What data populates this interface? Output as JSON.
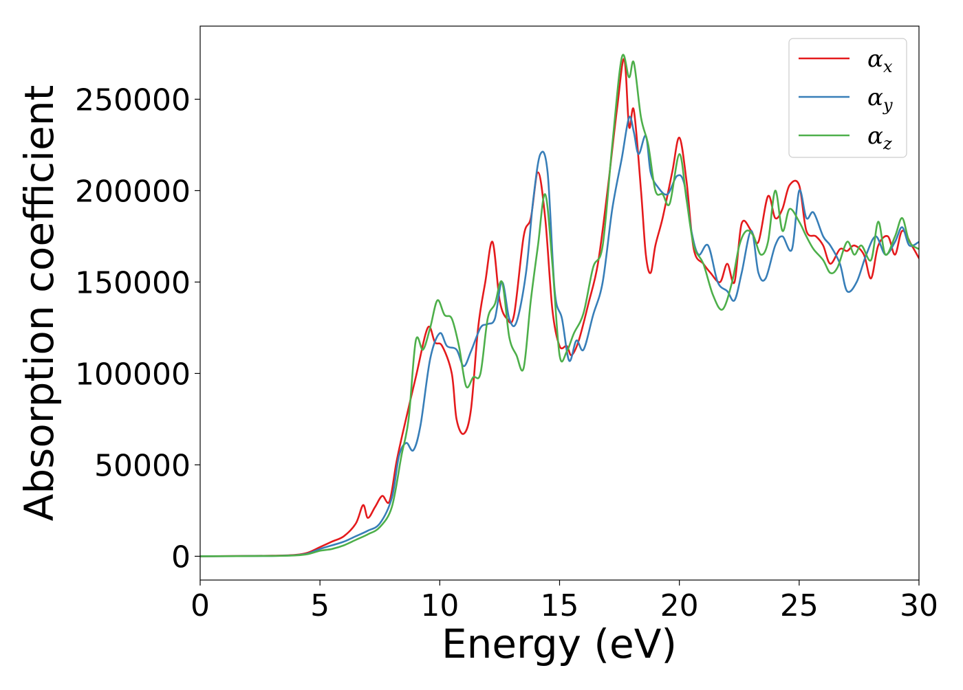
{
  "chart_data": {
    "type": "line",
    "xlabel": "Energy (eV)",
    "ylabel": "Absorption coefficient",
    "xlim": [
      0,
      30
    ],
    "ylim": [
      -13000,
      290000
    ],
    "xticks": [
      0,
      5,
      10,
      15,
      20,
      25,
      30
    ],
    "xtick_labels": [
      "0",
      "5",
      "10",
      "15",
      "20",
      "25",
      "30"
    ],
    "yticks": [
      0,
      50000,
      100000,
      150000,
      200000,
      250000
    ],
    "ytick_labels": [
      "0",
      "50000",
      "100000",
      "150000",
      "200000",
      "250000"
    ],
    "grid": false,
    "legend_position": "top-right",
    "series": [
      {
        "name": "αx",
        "name_base": "α",
        "name_sub": "x",
        "color": "#e41a1c",
        "x": [
          0,
          3,
          4,
          4.5,
          5,
          5.5,
          6,
          6.5,
          6.8,
          7.0,
          7.3,
          7.6,
          7.9,
          8.2,
          8.5,
          9.0,
          9.5,
          9.8,
          10.1,
          10.5,
          10.7,
          11.0,
          11.3,
          11.6,
          11.9,
          12.2,
          12.5,
          12.8,
          13.1,
          13.5,
          13.8,
          14.1,
          14.4,
          14.7,
          15.0,
          15.3,
          15.5,
          15.8,
          16.2,
          16.6,
          17.0,
          17.4,
          17.7,
          17.9,
          18.1,
          18.4,
          18.6,
          18.8,
          19.0,
          19.3,
          19.7,
          20.0,
          20.3,
          20.6,
          21.0,
          21.3,
          21.7,
          22.0,
          22.3,
          22.6,
          23.0,
          23.3,
          23.7,
          24.0,
          24.3,
          24.6,
          25.0,
          25.3,
          25.7,
          26.0,
          26.3,
          26.7,
          27.0,
          27.3,
          27.7,
          28.0,
          28.3,
          28.7,
          29.0,
          29.3,
          29.7,
          30.0
        ],
        "y": [
          0,
          300,
          800,
          2000,
          5000,
          8000,
          11000,
          18000,
          28000,
          21000,
          27000,
          33000,
          30000,
          52000,
          70000,
          98000,
          125000,
          117000,
          115000,
          100000,
          75000,
          67000,
          80000,
          125000,
          150000,
          172000,
          140000,
          130000,
          132000,
          175000,
          185000,
          210000,
          185000,
          135000,
          115000,
          115000,
          110000,
          118000,
          138000,
          160000,
          200000,
          245000,
          272000,
          235000,
          244000,
          200000,
          165000,
          155000,
          170000,
          185000,
          210000,
          229000,
          205000,
          168000,
          160000,
          155000,
          150000,
          160000,
          150000,
          182000,
          178000,
          172000,
          197000,
          185000,
          190000,
          203000,
          203000,
          178000,
          175000,
          170000,
          160000,
          168000,
          167000,
          170000,
          165000,
          152000,
          170000,
          175000,
          165000,
          178000,
          170000,
          163000
        ]
      },
      {
        "name": "αy",
        "name_base": "α",
        "name_sub": "y",
        "color": "#377eb8",
        "x": [
          0,
          3,
          4,
          4.5,
          5,
          5.5,
          6,
          6.5,
          7.0,
          7.5,
          8.0,
          8.3,
          8.6,
          8.9,
          9.2,
          9.6,
          10.0,
          10.3,
          10.7,
          11.0,
          11.3,
          11.7,
          12.0,
          12.3,
          12.6,
          12.9,
          13.2,
          13.6,
          13.9,
          14.2,
          14.5,
          14.8,
          15.1,
          15.4,
          15.7,
          16.0,
          16.4,
          16.8,
          17.2,
          17.6,
          17.9,
          18.1,
          18.3,
          18.6,
          18.8,
          19.1,
          19.5,
          19.9,
          20.2,
          20.5,
          20.8,
          21.2,
          21.6,
          22.0,
          22.3,
          22.6,
          23.0,
          23.3,
          23.6,
          24.0,
          24.3,
          24.7,
          25.0,
          25.3,
          25.6,
          26.0,
          26.3,
          26.7,
          27.0,
          27.4,
          27.8,
          28.2,
          28.6,
          29.0,
          29.3,
          29.6,
          30.0
        ],
        "y": [
          0,
          200,
          600,
          1500,
          4000,
          6000,
          8000,
          11000,
          14000,
          18000,
          32000,
          55000,
          62000,
          58000,
          72000,
          108000,
          122000,
          115000,
          113000,
          104000,
          112000,
          125000,
          127000,
          130000,
          150000,
          130000,
          128000,
          155000,
          195000,
          220000,
          210000,
          145000,
          130000,
          107000,
          118000,
          113000,
          132000,
          150000,
          190000,
          218000,
          240000,
          232000,
          220000,
          230000,
          210000,
          202000,
          198000,
          208000,
          204000,
          178000,
          165000,
          170000,
          150000,
          145000,
          140000,
          155000,
          178000,
          155000,
          152000,
          170000,
          175000,
          168000,
          200000,
          185000,
          188000,
          175000,
          170000,
          160000,
          145000,
          150000,
          165000,
          175000,
          165000,
          172000,
          180000,
          170000,
          172000
        ]
      },
      {
        "name": "αz",
        "name_base": "α",
        "name_sub": "z",
        "color": "#4daf4a",
        "x": [
          0,
          3,
          4,
          4.5,
          5,
          5.5,
          6,
          6.5,
          7.0,
          7.5,
          8.0,
          8.4,
          8.7,
          9.0,
          9.3,
          9.6,
          9.9,
          10.2,
          10.5,
          10.8,
          11.1,
          11.4,
          11.7,
          12.0,
          12.3,
          12.6,
          12.9,
          13.2,
          13.5,
          13.8,
          14.1,
          14.4,
          14.7,
          15.0,
          15.3,
          15.6,
          16.0,
          16.4,
          16.8,
          17.2,
          17.6,
          17.9,
          18.1,
          18.4,
          18.7,
          19.0,
          19.3,
          19.6,
          20.0,
          20.3,
          20.6,
          21.0,
          21.4,
          21.8,
          22.2,
          22.5,
          22.8,
          23.1,
          23.4,
          23.7,
          24.0,
          24.3,
          24.6,
          25.0,
          25.3,
          25.6,
          26.0,
          26.3,
          26.6,
          27.0,
          27.3,
          27.6,
          28.0,
          28.3,
          28.6,
          29.0,
          29.3,
          29.6,
          30.0
        ],
        "y": [
          0,
          200,
          500,
          1200,
          3000,
          4000,
          6000,
          9000,
          12000,
          16000,
          27000,
          55000,
          75000,
          118000,
          113000,
          125000,
          140000,
          132000,
          130000,
          115000,
          93000,
          98000,
          100000,
          130000,
          138000,
          150000,
          120000,
          110000,
          103000,
          140000,
          170000,
          198000,
          160000,
          110000,
          112000,
          122000,
          133000,
          158000,
          170000,
          225000,
          273000,
          262000,
          270000,
          240000,
          225000,
          200000,
          198000,
          193000,
          220000,
          195000,
          170000,
          160000,
          143000,
          135000,
          150000,
          170000,
          178000,
          175000,
          165000,
          172000,
          200000,
          178000,
          190000,
          183000,
          175000,
          168000,
          162000,
          155000,
          158000,
          172000,
          165000,
          170000,
          162000,
          183000,
          165000,
          175000,
          185000,
          172000,
          168000
        ]
      }
    ]
  }
}
